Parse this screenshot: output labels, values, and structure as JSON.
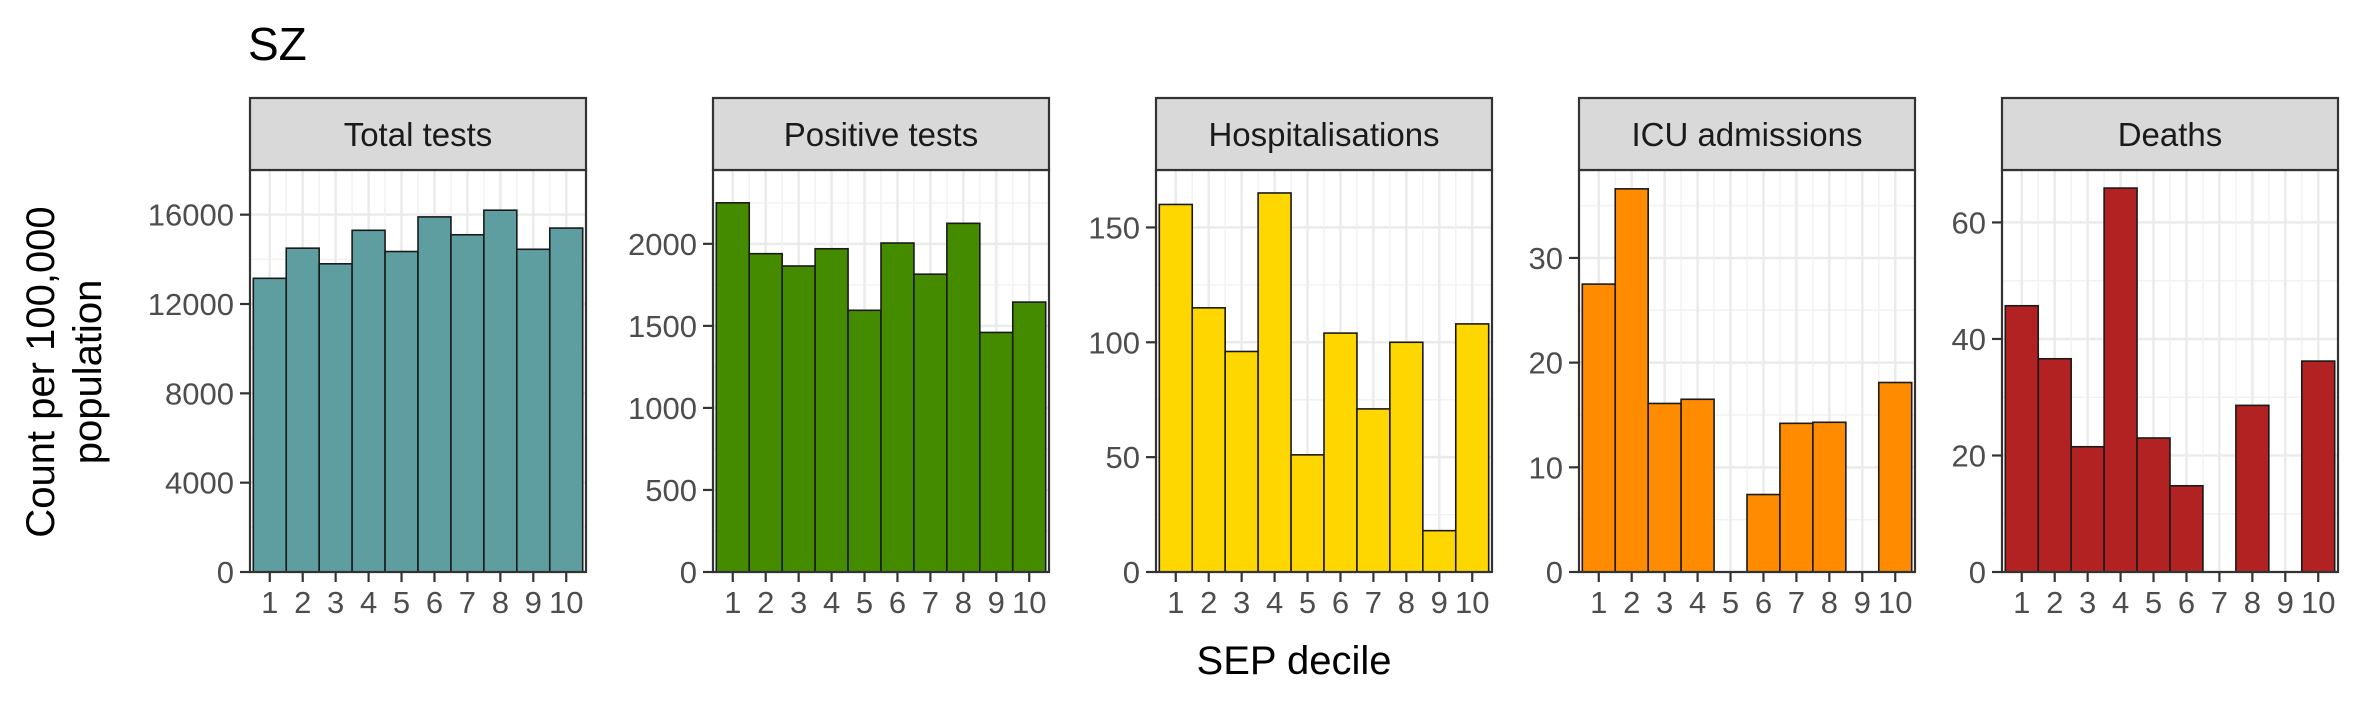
{
  "page": {
    "title": "SZ",
    "xlabel": "SEP decile",
    "ylabel_line1": "Count per 100,000",
    "ylabel_line2": "population"
  },
  "chart_data": [
    {
      "type": "bar",
      "title": "Total tests",
      "categories": [
        "1",
        "2",
        "3",
        "4",
        "5",
        "6",
        "7",
        "8",
        "9",
        "10"
      ],
      "values": [
        13150,
        14500,
        13800,
        15300,
        14350,
        15900,
        15100,
        16200,
        14450,
        15400
      ],
      "ylim": [
        0,
        18000
      ],
      "yticks": [
        0,
        4000,
        8000,
        12000,
        16000
      ],
      "color": "#5f9ea0",
      "grid": true
    },
    {
      "type": "bar",
      "title": "Positive tests",
      "categories": [
        "1",
        "2",
        "3",
        "4",
        "5",
        "6",
        "7",
        "8",
        "9",
        "10"
      ],
      "values": [
        2250,
        1940,
        1865,
        1970,
        1595,
        2005,
        1815,
        2125,
        1460,
        1645
      ],
      "ylim": [
        0,
        2450
      ],
      "yticks": [
        0,
        500,
        1000,
        1500,
        2000
      ],
      "color": "#458b00",
      "grid": true
    },
    {
      "type": "bar",
      "title": "Hospitalisations",
      "categories": [
        "1",
        "2",
        "3",
        "4",
        "5",
        "6",
        "7",
        "8",
        "9",
        "10"
      ],
      "values": [
        160,
        115,
        96,
        165,
        51,
        104,
        71,
        100,
        18,
        108
      ],
      "ylim": [
        0,
        175
      ],
      "yticks": [
        0,
        50,
        100,
        150
      ],
      "color": "#ffd700",
      "grid": true
    },
    {
      "type": "bar",
      "title": "ICU admissions",
      "categories": [
        "1",
        "2",
        "3",
        "4",
        "5",
        "6",
        "7",
        "8",
        "9",
        "10"
      ],
      "values": [
        27.5,
        36.6,
        16.1,
        16.5,
        null,
        7.4,
        14.2,
        14.3,
        null,
        18.1
      ],
      "ylim": [
        0,
        38.4
      ],
      "yticks": [
        0,
        10,
        20,
        30
      ],
      "color": "#ff8c00",
      "grid": true
    },
    {
      "type": "bar",
      "title": "Deaths",
      "categories": [
        "1",
        "2",
        "3",
        "4",
        "5",
        "6",
        "7",
        "8",
        "9",
        "10"
      ],
      "values": [
        45.7,
        36.6,
        21.5,
        65.9,
        23.0,
        14.8,
        null,
        28.6,
        null,
        36.2
      ],
      "ylim": [
        0,
        69
      ],
      "yticks": [
        0,
        20,
        40,
        60
      ],
      "color": "#b22222",
      "grid": true
    }
  ]
}
